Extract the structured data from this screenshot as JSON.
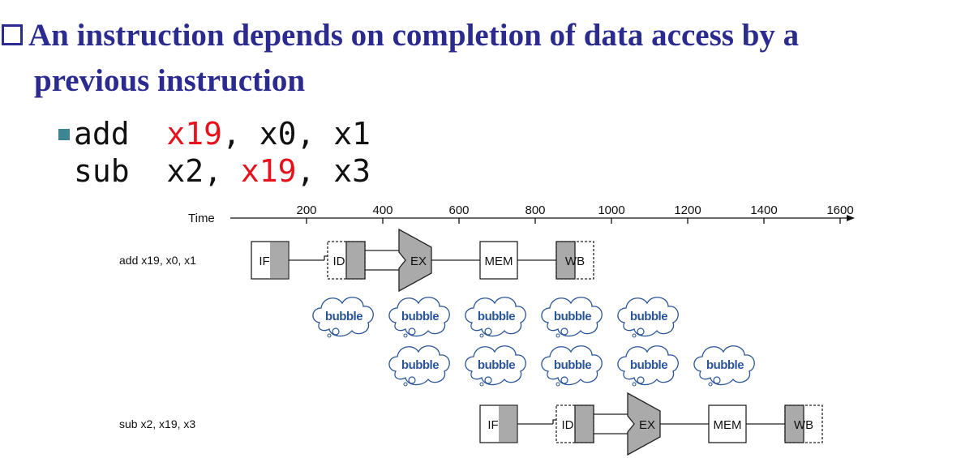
{
  "slide": {
    "heading_line1": "An instruction depends on completion of data access by a",
    "heading_line2": "previous instruction",
    "bullet_icon": "square-bullet-icon",
    "code_lines": [
      [
        {
          "t": "add  ",
          "red": false
        },
        {
          "t": "x19",
          "red": true
        },
        {
          "t": ", x0, x1",
          "red": false
        }
      ],
      [
        {
          "t": "sub  x2, ",
          "red": false
        },
        {
          "t": "x19",
          "red": true
        },
        {
          "t": ", x3",
          "red": false
        }
      ]
    ],
    "accent_color": "#2b2b8f",
    "highlight_color": "#e8101a"
  },
  "diagram": {
    "time_label": "Time",
    "time_ticks": [
      "200",
      "400",
      "600",
      "800",
      "1000",
      "1200",
      "1400",
      "1600"
    ],
    "stage_labels": [
      "IF",
      "ID",
      "EX",
      "MEM",
      "WB"
    ],
    "instructions": [
      {
        "label": "add x19, x0, x1",
        "start": 0
      },
      {
        "label": "sub x2, x19, x3",
        "start": 600
      }
    ],
    "bubble_text": "bubble",
    "bubble_rows": [
      [
        200,
        400,
        600,
        800,
        1000
      ],
      [
        400,
        600,
        800,
        1000,
        1200
      ]
    ],
    "stage_fill_color": "#aaaaaa",
    "bubble_color": "#2a5599"
  }
}
